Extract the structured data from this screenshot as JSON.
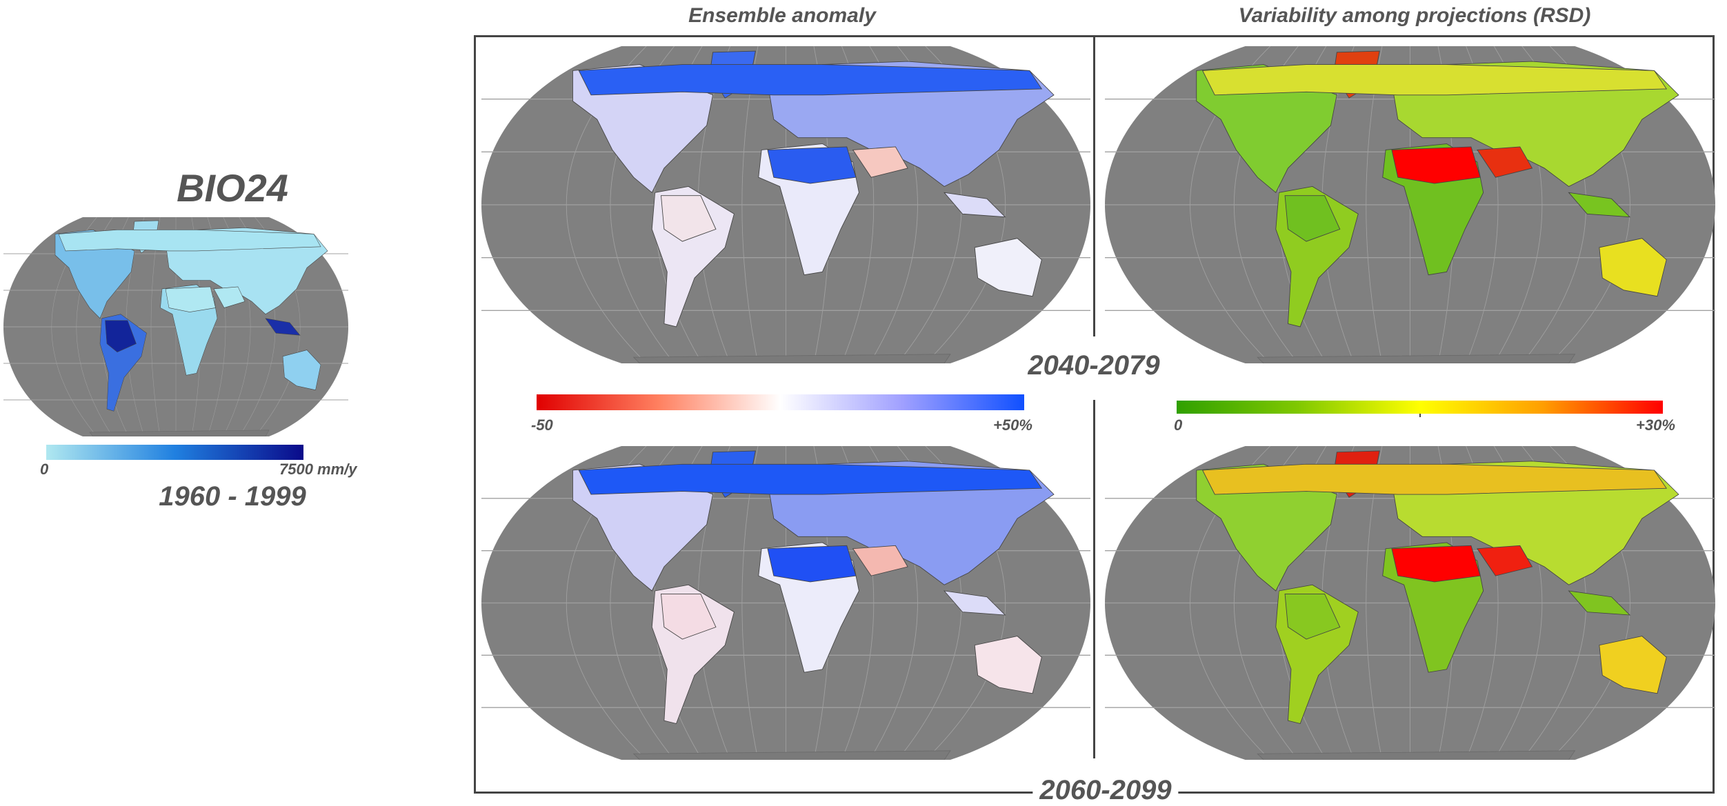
{
  "chart_data": {
    "type": "heatmap",
    "title": "BIO24",
    "baseline": {
      "period": "1960 - 1999",
      "colorbar": {
        "min_label": "0",
        "max_label": "7500 mm/y",
        "range": [
          0,
          7500
        ],
        "unit": "mm/y",
        "colors": [
          "#b0e8f0",
          "#2080e0",
          "#0a0a8a"
        ]
      }
    },
    "column_titles": [
      "Ensemble anomaly",
      "Variability among projections (RSD)"
    ],
    "periods": [
      "2040-2079",
      "2060-2099"
    ],
    "anomaly_colorbar": {
      "min_label": "-50",
      "max_label": "+50%",
      "range": [
        -50,
        50
      ],
      "unit": "%",
      "colors": [
        "#e00000",
        "#ff8060",
        "#ffffff",
        "#a0a0ff",
        "#1050ff"
      ]
    },
    "rsd_colorbar": {
      "min_label": "0",
      "max_label": "+30%",
      "range": [
        0,
        30
      ],
      "unit": "%",
      "colors": [
        "#30a000",
        "#80c800",
        "#ffff00",
        "#ffa000",
        "#ff0000"
      ]
    },
    "ocean_color": "#808080"
  }
}
